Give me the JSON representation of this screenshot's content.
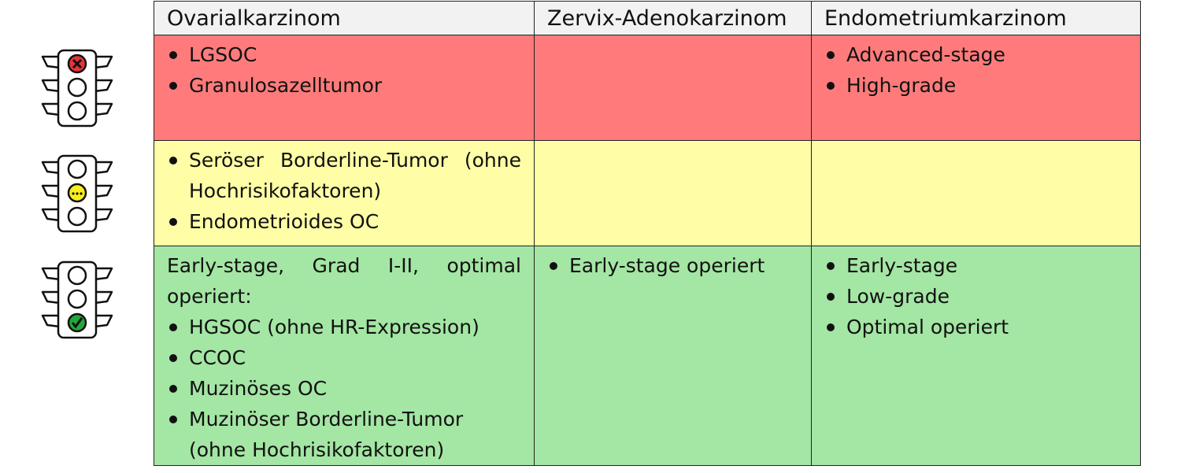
{
  "traffic_lights": [
    {
      "name": "red",
      "active_color": "#e8323a",
      "symbol": "x"
    },
    {
      "name": "yellow",
      "active_color": "#f7ee1e",
      "symbol": "..."
    },
    {
      "name": "green",
      "active_color": "#22a83a",
      "symbol": "check"
    }
  ],
  "colors": {
    "red_row": "#ff7b7b",
    "yellow_row": "#fffea6",
    "green_row": "#a4e6a4",
    "header": "#f2f2f2"
  },
  "headers": [
    "Ovarialkarzinom",
    "Zervix-Adenokarzinom",
    "Endometriumkarzinom"
  ],
  "rows": {
    "red": {
      "ovarial": [
        "LGSOC",
        "Granulosazelltumor"
      ],
      "zervix": [],
      "endometrium": [
        "Advanced-stage",
        "High-grade"
      ]
    },
    "yellow": {
      "ovarial": [
        "Seröser Borderline-Tumor (ohne Hochrisikofaktoren)",
        "Endometrioides OC"
      ],
      "zervix": [],
      "endometrium": []
    },
    "green": {
      "ovarial_intro": "Early-stage, Grad I-II, optimal operiert:",
      "ovarial": [
        "HGSOC (ohne HR-Expression)",
        "CCOC",
        "Muzinöses OC",
        "Muzinöser Borderline-Tumor (ohne Hochrisikofaktoren)"
      ],
      "zervix": [
        "Early-stage operiert"
      ],
      "endometrium": [
        "Early-stage",
        "Low-grade",
        "Optimal operiert"
      ]
    }
  }
}
